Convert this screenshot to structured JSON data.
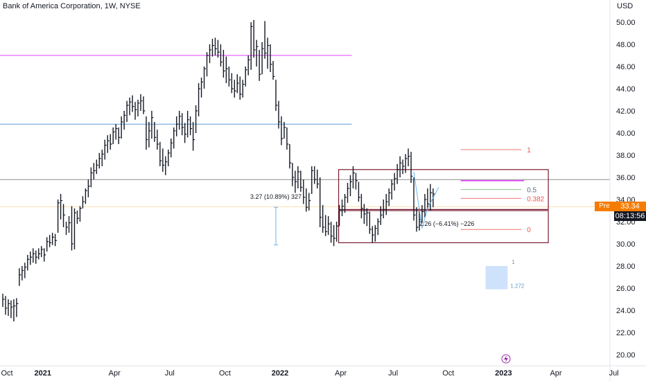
{
  "header": {
    "title": "Bank of America Corporation, 1W, NYSE"
  },
  "badges": {
    "pre_label": "Pre",
    "price": "33.34",
    "countdown": "08:13:56"
  },
  "colors": {
    "bar": "#131722",
    "maroon": "#7a1a2e",
    "magenta": "#e040fb",
    "blue": "#5b9bd5",
    "gray": "#8c8c8c",
    "cream": "#ffe0b2",
    "fib_red": "#ef5350",
    "fib_green": "#66bb6a",
    "fib_blue": "#64b5f6",
    "light_blue_fill": "#cfe2fb",
    "accent": "#f57c00",
    "lightning": "#9c27b0"
  },
  "chart_data": {
    "type": "bar",
    "currency": "USD",
    "ylim": [
      19,
      51.5
    ],
    "y_ticks": [
      "20.00",
      "22.00",
      "24.00",
      "26.00",
      "28.00",
      "30.00",
      "32.00",
      "34.00",
      "36.00",
      "38.00",
      "40.00",
      "42.00",
      "44.00",
      "46.00",
      "48.00",
      "50.00"
    ],
    "x_labels": [
      {
        "label": "Oct",
        "x": 0
      },
      {
        "label": "2021",
        "x": 13
      },
      {
        "label": "Apr",
        "x": 39
      },
      {
        "label": "Jul",
        "x": 59
      },
      {
        "label": "Oct",
        "x": 79
      },
      {
        "label": "2022",
        "x": 99
      },
      {
        "label": "Apr",
        "x": 121
      },
      {
        "label": "Jul",
        "x": 140
      },
      {
        "label": "Oct",
        "x": 160
      },
      {
        "label": "2023",
        "x": 180
      },
      {
        "label": "Apr",
        "x": 199
      },
      {
        "label": "Jul",
        "x": 220
      }
    ],
    "xlim": [
      0,
      223
    ],
    "bars": [
      [
        0,
        25.5,
        24.3,
        25.0
      ],
      [
        1,
        25.3,
        23.6,
        24.2
      ],
      [
        2,
        25.0,
        23.5,
        24.6
      ],
      [
        3,
        24.9,
        23.3,
        24.3
      ],
      [
        4,
        25.0,
        23.0,
        24.4
      ],
      [
        5,
        25.1,
        23.4,
        24.6
      ],
      [
        6,
        27.8,
        26.2,
        27.2
      ],
      [
        7,
        28.0,
        26.7,
        27.6
      ],
      [
        8,
        28.3,
        26.9,
        27.9
      ],
      [
        9,
        29.0,
        27.6,
        28.6
      ],
      [
        10,
        29.3,
        28.1,
        28.8
      ],
      [
        11,
        29.6,
        28.3,
        29.1
      ],
      [
        12,
        29.4,
        28.2,
        28.8
      ],
      [
        13,
        29.6,
        28.6,
        29.1
      ],
      [
        14,
        29.8,
        28.8,
        29.5
      ],
      [
        15,
        29.6,
        28.4,
        29.0
      ],
      [
        16,
        30.6,
        29.3,
        30.2
      ],
      [
        17,
        30.8,
        29.7,
        30.1
      ],
      [
        18,
        31.0,
        29.9,
        30.6
      ],
      [
        19,
        30.9,
        29.8,
        30.3
      ],
      [
        20,
        34.0,
        31.0,
        33.7
      ],
      [
        21,
        34.5,
        32.2,
        33.9
      ],
      [
        22,
        33.6,
        31.5,
        32.6
      ],
      [
        23,
        32.0,
        30.8,
        31.5
      ],
      [
        24,
        32.5,
        31.0,
        31.9
      ],
      [
        25,
        33.4,
        29.4,
        30.0
      ],
      [
        26,
        33.2,
        29.5,
        32.8
      ],
      [
        27,
        33.0,
        31.8,
        32.3
      ],
      [
        28,
        33.4,
        32.0,
        33.2
      ],
      [
        29,
        34.3,
        33.2,
        33.8
      ],
      [
        30,
        35.0,
        33.6,
        34.8
      ],
      [
        31,
        35.8,
        34.2,
        35.2
      ],
      [
        32,
        36.9,
        35.1,
        36.4
      ],
      [
        33,
        37.3,
        35.8,
        36.6
      ],
      [
        34,
        37.6,
        36.3,
        37.1
      ],
      [
        35,
        38.2,
        36.8,
        37.7
      ],
      [
        36,
        38.5,
        37.0,
        38.1
      ],
      [
        37,
        39.4,
        37.6,
        38.9
      ],
      [
        38,
        39.8,
        38.2,
        39.3
      ],
      [
        39,
        39.9,
        38.5,
        39.0
      ],
      [
        40,
        40.5,
        39.0,
        40.1
      ],
      [
        41,
        40.8,
        39.4,
        40.4
      ],
      [
        42,
        40.5,
        39.0,
        39.6
      ],
      [
        43,
        41.5,
        39.5,
        41.0
      ],
      [
        44,
        42.0,
        40.3,
        41.6
      ],
      [
        45,
        42.9,
        41.0,
        42.5
      ],
      [
        46,
        43.2,
        41.6,
        42.8
      ],
      [
        47,
        43.4,
        41.9,
        42.4
      ],
      [
        48,
        42.8,
        41.2,
        42.1
      ],
      [
        49,
        43.0,
        41.5,
        42.7
      ],
      [
        50,
        43.5,
        42.0,
        42.9
      ],
      [
        51,
        43.3,
        41.7,
        42.0
      ],
      [
        52,
        41.5,
        38.5,
        39.4
      ],
      [
        53,
        41.0,
        38.7,
        40.2
      ],
      [
        54,
        42.0,
        39.5,
        41.4
      ],
      [
        55,
        41.0,
        39.2,
        39.6
      ],
      [
        56,
        40.3,
        38.5,
        39.0
      ],
      [
        57,
        39.2,
        37.0,
        37.5
      ],
      [
        58,
        38.6,
        36.5,
        37.1
      ],
      [
        59,
        37.9,
        36.2,
        37.4
      ],
      [
        60,
        38.5,
        37.0,
        38.2
      ],
      [
        61,
        39.5,
        37.8,
        39.1
      ],
      [
        62,
        40.5,
        38.6,
        40.2
      ],
      [
        63,
        41.5,
        39.7,
        40.8
      ],
      [
        64,
        42.0,
        40.3,
        41.5
      ],
      [
        65,
        41.8,
        39.8,
        40.5
      ],
      [
        66,
        40.9,
        39.1,
        39.9
      ],
      [
        67,
        42.0,
        39.6,
        41.2
      ],
      [
        68,
        41.5,
        39.8,
        40.4
      ],
      [
        69,
        41.0,
        38.4,
        39.4
      ],
      [
        70,
        42.5,
        40.0,
        42.0
      ],
      [
        71,
        44.5,
        41.5,
        44.0
      ],
      [
        72,
        45.0,
        43.2,
        44.6
      ],
      [
        73,
        46.0,
        44.0,
        45.8
      ],
      [
        74,
        47.3,
        45.1,
        47.0
      ],
      [
        75,
        48.0,
        46.3,
        47.5
      ],
      [
        76,
        48.5,
        46.9,
        47.9
      ],
      [
        77,
        48.6,
        47.0,
        47.6
      ],
      [
        78,
        48.4,
        46.8,
        47.3
      ],
      [
        79,
        48.0,
        46.0,
        46.4
      ],
      [
        80,
        47.5,
        45.0,
        45.6
      ],
      [
        81,
        46.9,
        44.5,
        45.8
      ],
      [
        82,
        46.0,
        44.2,
        44.8
      ],
      [
        83,
        45.4,
        43.6,
        44.0
      ],
      [
        84,
        44.8,
        43.2,
        43.8
      ],
      [
        85,
        45.3,
        43.6,
        44.5
      ],
      [
        86,
        45.1,
        43.0,
        43.5
      ],
      [
        87,
        44.8,
        43.2,
        44.4
      ],
      [
        88,
        46.0,
        44.2,
        45.7
      ],
      [
        89,
        47.0,
        45.2,
        46.6
      ],
      [
        90,
        50.0,
        45.7,
        49.6
      ],
      [
        91,
        50.2,
        46.8,
        47.5
      ],
      [
        92,
        48.4,
        46.0,
        47.8
      ],
      [
        93,
        47.5,
        44.7,
        45.3
      ],
      [
        94,
        48.2,
        45.3,
        47.6
      ],
      [
        95,
        50.1,
        46.7,
        47.2
      ],
      [
        96,
        48.6,
        45.8,
        47.9
      ],
      [
        97,
        48.0,
        45.5,
        46.2
      ],
      [
        98,
        46.5,
        44.8,
        45.1
      ],
      [
        99,
        44.8,
        42.0,
        42.5
      ],
      [
        100,
        42.9,
        40.4,
        41.0
      ],
      [
        101,
        41.5,
        38.9,
        39.5
      ],
      [
        102,
        41.0,
        39.5,
        40.5
      ],
      [
        103,
        40.5,
        38.5,
        39.0
      ],
      [
        104,
        39.0,
        36.8,
        37.3
      ],
      [
        105,
        37.3,
        35.2,
        36.0
      ],
      [
        106,
        36.6,
        34.6,
        35.6
      ],
      [
        107,
        37.0,
        35.0,
        36.5
      ],
      [
        108,
        36.6,
        34.7,
        35.1
      ],
      [
        109,
        35.8,
        33.6,
        34.2
      ],
      [
        110,
        35.0,
        32.9,
        33.3
      ],
      [
        111,
        34.6,
        33.0,
        33.9
      ],
      [
        112,
        37.0,
        34.5,
        36.6
      ],
      [
        113,
        37.0,
        35.4,
        35.8
      ],
      [
        114,
        36.7,
        35.0,
        35.4
      ],
      [
        115,
        36.0,
        31.5,
        32.4
      ],
      [
        116,
        33.5,
        31.0,
        31.5
      ],
      [
        117,
        32.6,
        30.7,
        31.1
      ],
      [
        118,
        32.5,
        30.8,
        31.8
      ],
      [
        119,
        32.0,
        30.1,
        30.7
      ],
      [
        120,
        31.7,
        29.8,
        30.5
      ],
      [
        121,
        32.0,
        30.2,
        31.6
      ],
      [
        122,
        33.5,
        31.6,
        33.0
      ],
      [
        123,
        34.0,
        32.5,
        33.4
      ],
      [
        124,
        34.5,
        32.8,
        34.2
      ],
      [
        125,
        35.5,
        33.7,
        35.0
      ],
      [
        126,
        36.2,
        34.3,
        35.6
      ],
      [
        127,
        37.0,
        35.0,
        36.4
      ],
      [
        128,
        36.4,
        34.9,
        35.7
      ],
      [
        129,
        35.6,
        33.8,
        34.2
      ],
      [
        130,
        34.5,
        32.3,
        33.2
      ],
      [
        131,
        33.6,
        31.8,
        32.7
      ],
      [
        132,
        33.2,
        31.6,
        32.8
      ],
      [
        133,
        32.9,
        30.9,
        31.3
      ],
      [
        134,
        31.6,
        30.1,
        30.8
      ],
      [
        135,
        31.7,
        30.2,
        31.4
      ],
      [
        136,
        32.3,
        30.8,
        32.0
      ],
      [
        137,
        33.4,
        31.7,
        32.6
      ],
      [
        138,
        34.0,
        32.3,
        33.1
      ],
      [
        139,
        34.5,
        32.6,
        33.8
      ],
      [
        140,
        35.0,
        33.4,
        34.6
      ],
      [
        141,
        35.8,
        34.0,
        35.4
      ],
      [
        142,
        36.4,
        34.8,
        35.9
      ],
      [
        143,
        37.2,
        35.4,
        36.7
      ],
      [
        144,
        37.9,
        36.0,
        37.3
      ],
      [
        145,
        37.6,
        36.3,
        37.0
      ],
      [
        146,
        38.1,
        36.4,
        37.7
      ],
      [
        147,
        38.6,
        37.0,
        37.9
      ],
      [
        148,
        38.3,
        35.5,
        36.1
      ],
      [
        149,
        36.0,
        32.1,
        32.6
      ],
      [
        150,
        33.3,
        31.1,
        31.5
      ],
      [
        151,
        33.2,
        31.2,
        32.2
      ],
      [
        152,
        33.5,
        31.9,
        32.9
      ],
      [
        153,
        34.5,
        32.4,
        34.0
      ],
      [
        154,
        35.0,
        33.1,
        33.6
      ],
      [
        155,
        35.4,
        33.0,
        34.6
      ],
      [
        156,
        35.0,
        33.3,
        34.5
      ]
    ],
    "lines": [
      {
        "name": "magenta",
        "y": 47.0,
        "x0": 0,
        "x1": 125
      },
      {
        "name": "blue",
        "y": 40.8,
        "x0": 0,
        "x1": 125
      },
      {
        "name": "gray",
        "y": 35.8,
        "x0": 0,
        "x1": 223
      },
      {
        "name": "cream",
        "y": 33.34,
        "x0": 0,
        "x1": 223
      }
    ],
    "boxes": [
      {
        "x0": 122,
        "x1": 196,
        "y0": 33.1,
        "y1": 36.7
      },
      {
        "x0": 122,
        "x1": 196,
        "y0": 30.1,
        "y1": 33.0
      }
    ],
    "measure": {
      "label": "3.27 (10.89%) 327",
      "x": 99,
      "y_top": 33.3,
      "y_bottom": 29.9
    },
    "fib": [
      {
        "label": "1",
        "y": 38.5
      },
      {
        "label": "0.5",
        "y": 34.9
      },
      {
        "label": "0.382",
        "y": 34.1
      },
      {
        "label": "0",
        "y": 31.3
      }
    ],
    "fib_x": [
      166,
      188
    ],
    "fib_label_x": 190,
    "magenta_short": {
      "x0": 166,
      "x1": 189,
      "y": 35.7
    },
    "price_change": {
      "label": "2.26 (−6.41%) −226"
    },
    "ext": {
      "x0": 175,
      "x1": 183,
      "y_top": 28.0,
      "y_bottom": 25.9,
      "top_label": "1",
      "bottom_label": "1.272"
    }
  }
}
